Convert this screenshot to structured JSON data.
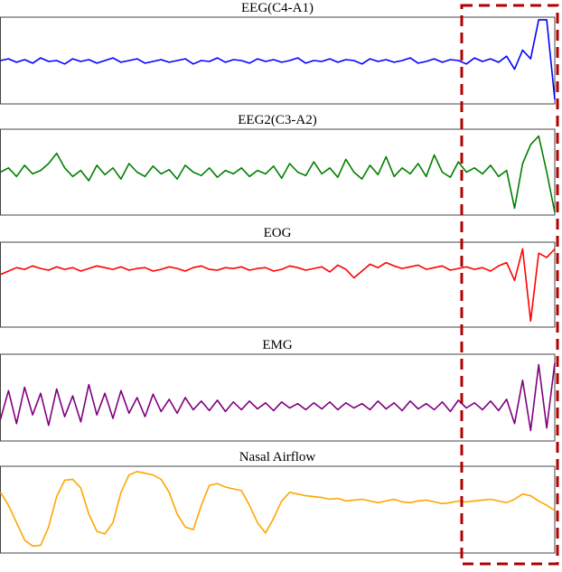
{
  "chart_data": [
    {
      "type": "line",
      "title": "EEG(C4-A1)",
      "color": "#0000ff",
      "ylim": [
        0,
        100
      ],
      "values": [
        50,
        52,
        48,
        51,
        47,
        53,
        49,
        50,
        46,
        52,
        49,
        51,
        47,
        50,
        53,
        48,
        50,
        52,
        47,
        49,
        51,
        48,
        50,
        52,
        46,
        50,
        49,
        53,
        48,
        51,
        50,
        47,
        52,
        49,
        51,
        48,
        50,
        53,
        47,
        50,
        49,
        52,
        48,
        51,
        50,
        46,
        52,
        49,
        51,
        48,
        50,
        53,
        47,
        49,
        52,
        48,
        51,
        50,
        46,
        53,
        49,
        52,
        48,
        55,
        40,
        62,
        52,
        97,
        97,
        5
      ]
    },
    {
      "type": "line",
      "title": "EEG2(C3-A2)",
      "color": "#007f00",
      "ylim": [
        0,
        100
      ],
      "values": [
        50,
        55,
        45,
        58,
        48,
        52,
        60,
        72,
        55,
        45,
        52,
        40,
        58,
        47,
        55,
        42,
        60,
        50,
        45,
        57,
        48,
        53,
        42,
        58,
        50,
        46,
        55,
        44,
        52,
        48,
        55,
        45,
        52,
        48,
        57,
        43,
        60,
        50,
        46,
        62,
        48,
        55,
        44,
        65,
        50,
        42,
        58,
        47,
        68,
        45,
        55,
        48,
        60,
        45,
        70,
        50,
        44,
        62,
        50,
        55,
        48,
        58,
        45,
        52,
        8,
        60,
        82,
        92,
        50,
        3
      ]
    },
    {
      "type": "line",
      "title": "EOG",
      "color": "#ff0000",
      "ylim": [
        0,
        100
      ],
      "values": [
        62,
        66,
        70,
        68,
        72,
        69,
        67,
        71,
        68,
        70,
        66,
        69,
        72,
        70,
        68,
        71,
        67,
        69,
        70,
        66,
        68,
        71,
        69,
        66,
        70,
        72,
        68,
        67,
        70,
        69,
        71,
        67,
        69,
        70,
        66,
        68,
        72,
        70,
        67,
        69,
        71,
        65,
        73,
        68,
        58,
        66,
        74,
        70,
        76,
        72,
        69,
        71,
        73,
        68,
        70,
        72,
        67,
        69,
        71,
        68,
        70,
        66,
        72,
        76,
        55,
        92,
        7,
        87,
        82,
        92
      ]
    },
    {
      "type": "line",
      "title": "EMG",
      "color": "#800080",
      "ylim": [
        0,
        100
      ],
      "values": [
        25,
        58,
        20,
        62,
        30,
        55,
        18,
        60,
        28,
        52,
        22,
        65,
        30,
        55,
        26,
        58,
        32,
        50,
        28,
        54,
        34,
        48,
        32,
        50,
        36,
        46,
        35,
        47,
        34,
        45,
        36,
        46,
        37,
        44,
        35,
        45,
        38,
        43,
        36,
        44,
        37,
        45,
        36,
        44,
        38,
        43,
        36,
        46,
        37,
        44,
        35,
        46,
        37,
        43,
        36,
        45,
        34,
        47,
        38,
        44,
        36,
        46,
        35,
        48,
        20,
        70,
        12,
        88,
        15,
        90
      ]
    },
    {
      "type": "line",
      "title": "Nasal Airflow",
      "color": "#ffa500",
      "ylim": [
        0,
        100
      ],
      "values": [
        70,
        55,
        35,
        15,
        8,
        9,
        30,
        65,
        84,
        85,
        75,
        45,
        25,
        22,
        35,
        70,
        90,
        94,
        92,
        90,
        85,
        70,
        45,
        30,
        27,
        55,
        78,
        80,
        76,
        74,
        72,
        55,
        35,
        23,
        40,
        60,
        70,
        68,
        66,
        65,
        64,
        62,
        63,
        60,
        61,
        62,
        60,
        58,
        60,
        62,
        59,
        58,
        60,
        61,
        59,
        57,
        58,
        60,
        59,
        60,
        61,
        62,
        60,
        58,
        62,
        68,
        66,
        60,
        55,
        49
      ]
    }
  ]
}
